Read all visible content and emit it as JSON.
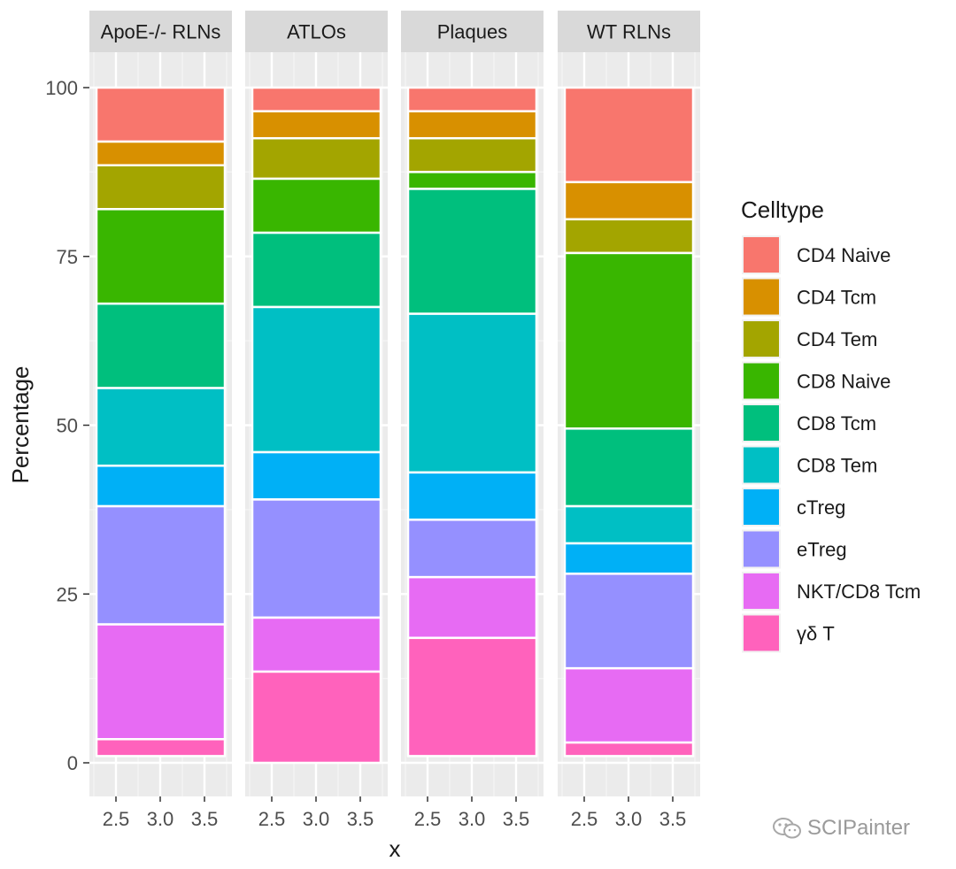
{
  "chart_data": {
    "type": "bar",
    "stacked": true,
    "xlabel": "x",
    "ylabel": "Percentage",
    "ylim": [
      0,
      100
    ],
    "y_ticks": [
      0,
      25,
      50,
      75,
      100
    ],
    "x_ticks": [
      "2.5",
      "3.0",
      "3.5"
    ],
    "legend": {
      "title": "Celltype",
      "position": "right"
    },
    "categories": [
      "CD4 Naive",
      "CD4 Tcm",
      "CD4 Tem",
      "CD8 Naive",
      "CD8 Tcm",
      "CD8 Tem",
      "cTreg",
      "eTreg",
      "NKT/CD8 Tcm",
      "γδ T"
    ],
    "colors": [
      "#F8766D",
      "#D89000",
      "#A3A500",
      "#39B600",
      "#00BF7D",
      "#00BFC4",
      "#00B0F6",
      "#9590FF",
      "#E76BF3",
      "#FF62BC"
    ],
    "facets": [
      {
        "label": "ApoE-/- RLNs",
        "values": [
          8.0,
          3.5,
          6.5,
          14.0,
          12.5,
          11.5,
          6.0,
          17.5,
          17.0,
          2.5
        ]
      },
      {
        "label": "ATLOs",
        "values": [
          3.5,
          4.0,
          6.0,
          8.0,
          11.0,
          21.5,
          7.0,
          17.5,
          8.0,
          13.5
        ]
      },
      {
        "label": "Plaques",
        "values": [
          3.5,
          4.0,
          5.0,
          2.5,
          18.5,
          23.5,
          7.0,
          8.5,
          9.0,
          17.5
        ]
      },
      {
        "label": "WT RLNs",
        "values": [
          14.0,
          5.5,
          5.0,
          26.0,
          11.5,
          5.5,
          4.5,
          14.0,
          11.0,
          2.0
        ]
      }
    ]
  },
  "watermark": "SCIPainter"
}
